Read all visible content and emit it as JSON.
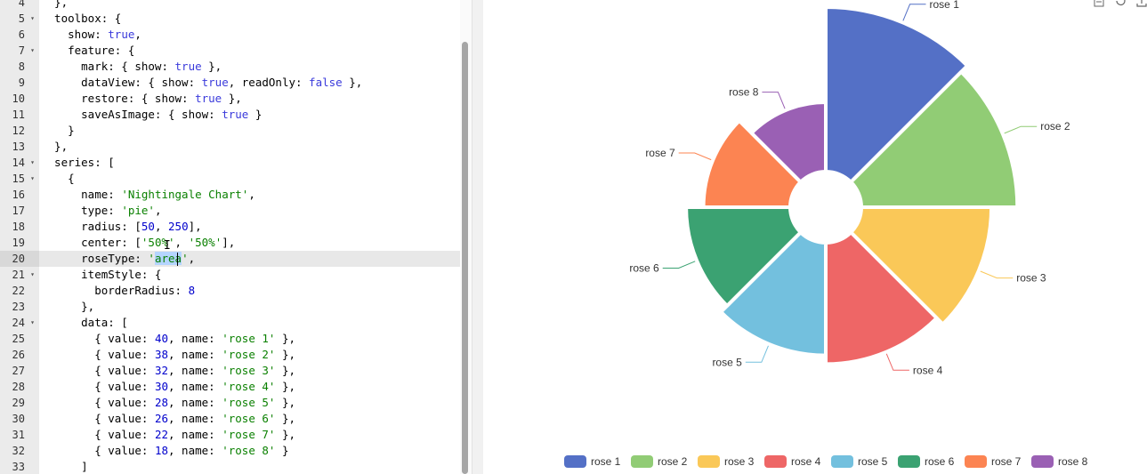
{
  "editor": {
    "lines": [
      {
        "n": "4",
        "fold": false,
        "tokens": [
          [
            "key",
            "  },"
          ]
        ]
      },
      {
        "n": "5",
        "fold": true,
        "tokens": [
          [
            "key",
            "  toolbox: {"
          ]
        ]
      },
      {
        "n": "6",
        "fold": false,
        "tokens": [
          [
            "key",
            "    show: "
          ],
          [
            "bool",
            "true"
          ],
          [
            "key",
            ","
          ]
        ]
      },
      {
        "n": "7",
        "fold": true,
        "tokens": [
          [
            "key",
            "    feature: {"
          ]
        ]
      },
      {
        "n": "8",
        "fold": false,
        "tokens": [
          [
            "key",
            "      mark: { show: "
          ],
          [
            "bool",
            "true"
          ],
          [
            "key",
            " },"
          ]
        ]
      },
      {
        "n": "9",
        "fold": false,
        "tokens": [
          [
            "key",
            "      dataView: { show: "
          ],
          [
            "bool",
            "true"
          ],
          [
            "key",
            ", readOnly: "
          ],
          [
            "bool",
            "false"
          ],
          [
            "key",
            " },"
          ]
        ]
      },
      {
        "n": "10",
        "fold": false,
        "tokens": [
          [
            "key",
            "      restore: { show: "
          ],
          [
            "bool",
            "true"
          ],
          [
            "key",
            " },"
          ]
        ]
      },
      {
        "n": "11",
        "fold": false,
        "tokens": [
          [
            "key",
            "      saveAsImage: { show: "
          ],
          [
            "bool",
            "true"
          ],
          [
            "key",
            " }"
          ]
        ]
      },
      {
        "n": "12",
        "fold": false,
        "tokens": [
          [
            "key",
            "    }"
          ]
        ]
      },
      {
        "n": "13",
        "fold": false,
        "tokens": [
          [
            "key",
            "  },"
          ]
        ]
      },
      {
        "n": "14",
        "fold": true,
        "tokens": [
          [
            "key",
            "  series: ["
          ]
        ]
      },
      {
        "n": "15",
        "fold": true,
        "tokens": [
          [
            "key",
            "    {"
          ]
        ]
      },
      {
        "n": "16",
        "fold": false,
        "tokens": [
          [
            "key",
            "      name: "
          ],
          [
            "str",
            "'Nightingale Chart'"
          ],
          [
            "key",
            ","
          ]
        ]
      },
      {
        "n": "17",
        "fold": false,
        "tokens": [
          [
            "key",
            "      type: "
          ],
          [
            "str",
            "'pie'"
          ],
          [
            "key",
            ","
          ]
        ]
      },
      {
        "n": "18",
        "fold": false,
        "tokens": [
          [
            "key",
            "      radius: ["
          ],
          [
            "num",
            "50"
          ],
          [
            "key",
            ", "
          ],
          [
            "num",
            "250"
          ],
          [
            "key",
            "],"
          ]
        ]
      },
      {
        "n": "19",
        "fold": false,
        "tokens": [
          [
            "key",
            "      center: ["
          ],
          [
            "str",
            "'50%'"
          ],
          [
            "key",
            ", "
          ],
          [
            "str",
            "'50%'"
          ],
          [
            "key",
            "],"
          ]
        ]
      },
      {
        "n": "20",
        "fold": false,
        "active": true,
        "tokens": [
          [
            "key",
            "      roseType: "
          ],
          [
            "str",
            "'"
          ],
          [
            "sel",
            "area"
          ],
          [
            "str",
            "'"
          ],
          [
            "key",
            ","
          ]
        ]
      },
      {
        "n": "21",
        "fold": true,
        "tokens": [
          [
            "key",
            "      itemStyle: {"
          ]
        ]
      },
      {
        "n": "22",
        "fold": false,
        "tokens": [
          [
            "key",
            "        borderRadius: "
          ],
          [
            "num",
            "8"
          ]
        ]
      },
      {
        "n": "23",
        "fold": false,
        "tokens": [
          [
            "key",
            "      },"
          ]
        ]
      },
      {
        "n": "24",
        "fold": true,
        "tokens": [
          [
            "key",
            "      data: ["
          ]
        ]
      },
      {
        "n": "25",
        "fold": false,
        "tokens": [
          [
            "key",
            "        { value: "
          ],
          [
            "num",
            "40"
          ],
          [
            "key",
            ", name: "
          ],
          [
            "str",
            "'rose 1'"
          ],
          [
            "key",
            " },"
          ]
        ]
      },
      {
        "n": "26",
        "fold": false,
        "tokens": [
          [
            "key",
            "        { value: "
          ],
          [
            "num",
            "38"
          ],
          [
            "key",
            ", name: "
          ],
          [
            "str",
            "'rose 2'"
          ],
          [
            "key",
            " },"
          ]
        ]
      },
      {
        "n": "27",
        "fold": false,
        "tokens": [
          [
            "key",
            "        { value: "
          ],
          [
            "num",
            "32"
          ],
          [
            "key",
            ", name: "
          ],
          [
            "str",
            "'rose 3'"
          ],
          [
            "key",
            " },"
          ]
        ]
      },
      {
        "n": "28",
        "fold": false,
        "tokens": [
          [
            "key",
            "        { value: "
          ],
          [
            "num",
            "30"
          ],
          [
            "key",
            ", name: "
          ],
          [
            "str",
            "'rose 4'"
          ],
          [
            "key",
            " },"
          ]
        ]
      },
      {
        "n": "29",
        "fold": false,
        "tokens": [
          [
            "key",
            "        { value: "
          ],
          [
            "num",
            "28"
          ],
          [
            "key",
            ", name: "
          ],
          [
            "str",
            "'rose 5'"
          ],
          [
            "key",
            " },"
          ]
        ]
      },
      {
        "n": "30",
        "fold": false,
        "tokens": [
          [
            "key",
            "        { value: "
          ],
          [
            "num",
            "26"
          ],
          [
            "key",
            ", name: "
          ],
          [
            "str",
            "'rose 6'"
          ],
          [
            "key",
            " },"
          ]
        ]
      },
      {
        "n": "31",
        "fold": false,
        "tokens": [
          [
            "key",
            "        { value: "
          ],
          [
            "num",
            "22"
          ],
          [
            "key",
            ", name: "
          ],
          [
            "str",
            "'rose 7'"
          ],
          [
            "key",
            " },"
          ]
        ]
      },
      {
        "n": "32",
        "fold": false,
        "tokens": [
          [
            "key",
            "        { value: "
          ],
          [
            "num",
            "18"
          ],
          [
            "key",
            ", name: "
          ],
          [
            "str",
            "'rose 8'"
          ],
          [
            "key",
            " }"
          ]
        ]
      },
      {
        "n": "33",
        "fold": false,
        "tokens": [
          [
            "key",
            "      ]"
          ]
        ]
      }
    ]
  },
  "toolbox": {
    "icons": [
      "data-view-icon",
      "restore-icon",
      "save-as-image-icon"
    ]
  },
  "chart_data": {
    "type": "pie",
    "rose_type": "area",
    "inner_radius": 50,
    "outer_radius": 250,
    "legend_position": "bottom",
    "series": [
      {
        "name": "rose 1",
        "value": 40,
        "color": "#5470c6"
      },
      {
        "name": "rose 2",
        "value": 38,
        "color": "#91cc75"
      },
      {
        "name": "rose 3",
        "value": 32,
        "color": "#fac858"
      },
      {
        "name": "rose 4",
        "value": 30,
        "color": "#ee6666"
      },
      {
        "name": "rose 5",
        "value": 28,
        "color": "#73c0de"
      },
      {
        "name": "rose 6",
        "value": 26,
        "color": "#3ba272"
      },
      {
        "name": "rose 7",
        "value": 22,
        "color": "#fc8452"
      },
      {
        "name": "rose 8",
        "value": 18,
        "color": "#9a60b4"
      }
    ]
  }
}
